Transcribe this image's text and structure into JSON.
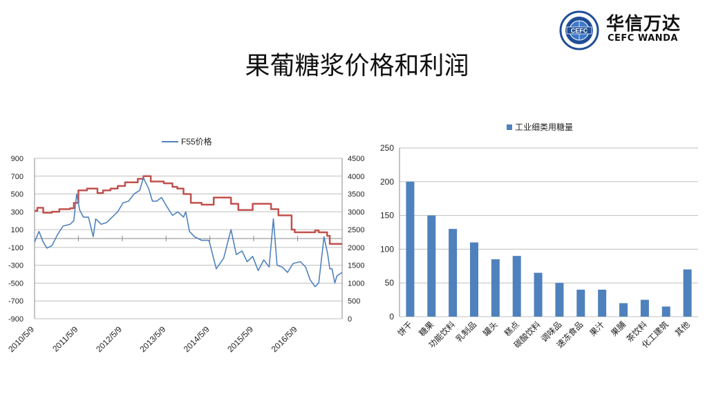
{
  "header": {
    "title": "果葡糖浆价格和利润",
    "logo_cn": "华信万达",
    "logo_en": "CEFC WANDA",
    "logo_ring_text": "CEFC WANDA FUTURES COMPANY LIMITED",
    "logo_center": "CEFC"
  },
  "chart_data": [
    {
      "type": "line",
      "legend_position": "top",
      "grid": true,
      "left_axis": {
        "ylim": [
          -900,
          900
        ],
        "ticks": [
          900,
          700,
          500,
          300,
          100,
          -100,
          -300,
          -500,
          -700,
          -900
        ]
      },
      "right_axis": {
        "ylim": [
          0,
          4500
        ],
        "ticks": [
          4500,
          4000,
          3500,
          3000,
          2500,
          2000,
          1500,
          1000,
          500,
          0
        ]
      },
      "x_ticks": [
        "2010/5/9",
        "2011/5/9",
        "2012/5/9",
        "2013/5/9",
        "2014/5/9",
        "2015/5/9",
        "2016/5/9"
      ],
      "x_range": [
        "2010-05-09",
        "2017-05-15"
      ],
      "series": [
        {
          "name": "",
          "axis": "left",
          "color": "#c0504d",
          "step": true,
          "points": [
            [
              "2010-05-09",
              310
            ],
            [
              "2010-06-01",
              345
            ],
            [
              "2010-07-20",
              290
            ],
            [
              "2010-10-01",
              300
            ],
            [
              "2010-12-01",
              330
            ],
            [
              "2011-03-01",
              340
            ],
            [
              "2011-04-01",
              400
            ],
            [
              "2011-05-09",
              540
            ],
            [
              "2011-07-20",
              560
            ],
            [
              "2011-10-15",
              510
            ],
            [
              "2011-12-01",
              540
            ],
            [
              "2012-02-01",
              560
            ],
            [
              "2012-04-01",
              590
            ],
            [
              "2012-06-01",
              630
            ],
            [
              "2012-09-15",
              670
            ],
            [
              "2012-11-01",
              700
            ],
            [
              "2013-01-01",
              640
            ],
            [
              "2013-04-20",
              620
            ],
            [
              "2013-07-01",
              580
            ],
            [
              "2013-08-10",
              560
            ],
            [
              "2013-10-01",
              500
            ],
            [
              "2013-12-01",
              400
            ],
            [
              "2014-03-01",
              380
            ],
            [
              "2014-06-10",
              460
            ],
            [
              "2014-11-01",
              390
            ],
            [
              "2015-01-01",
              320
            ],
            [
              "2015-05-01",
              390
            ],
            [
              "2015-10-01",
              330
            ],
            [
              "2015-12-01",
              260
            ],
            [
              "2016-03-20",
              100
            ],
            [
              "2016-04-15",
              70
            ],
            [
              "2016-10-01",
              90
            ],
            [
              "2016-11-01",
              70
            ],
            [
              "2017-01-10",
              30
            ],
            [
              "2017-02-01",
              -60
            ],
            [
              "2017-05-15",
              -60
            ]
          ]
        },
        {
          "name": "F55价格",
          "axis": "right",
          "color": "#4f81bd",
          "step": false,
          "points": [
            [
              "2010-05-09",
              2150
            ],
            [
              "2010-06-15",
              2450
            ],
            [
              "2010-07-20",
              2150
            ],
            [
              "2010-08-20",
              1980
            ],
            [
              "2010-10-01",
              2050
            ],
            [
              "2010-11-15",
              2350
            ],
            [
              "2011-01-01",
              2600
            ],
            [
              "2011-03-01",
              2650
            ],
            [
              "2011-04-01",
              2750
            ],
            [
              "2011-04-25",
              3500
            ],
            [
              "2011-05-20",
              3050
            ],
            [
              "2011-06-20",
              2850
            ],
            [
              "2011-08-01",
              2850
            ],
            [
              "2011-09-10",
              2300
            ],
            [
              "2011-10-01",
              2800
            ],
            [
              "2011-11-15",
              2650
            ],
            [
              "2012-01-01",
              2700
            ],
            [
              "2012-02-15",
              2850
            ],
            [
              "2012-04-01",
              3000
            ],
            [
              "2012-05-15",
              3250
            ],
            [
              "2012-07-01",
              3300
            ],
            [
              "2012-08-15",
              3500
            ],
            [
              "2012-10-01",
              3600
            ],
            [
              "2012-11-01",
              3950
            ],
            [
              "2012-12-15",
              3650
            ],
            [
              "2013-01-15",
              3300
            ],
            [
              "2013-02-20",
              3300
            ],
            [
              "2013-04-01",
              3400
            ],
            [
              "2013-05-15",
              3150
            ],
            [
              "2013-07-01",
              2900
            ],
            [
              "2013-08-15",
              3000
            ],
            [
              "2013-10-01",
              2850
            ],
            [
              "2013-10-20",
              3000
            ],
            [
              "2013-11-20",
              2450
            ],
            [
              "2014-01-01",
              2300
            ],
            [
              "2014-03-01",
              2200
            ],
            [
              "2014-05-01",
              2200
            ],
            [
              "2014-07-01",
              1400
            ],
            [
              "2014-09-01",
              1700
            ],
            [
              "2014-11-01",
              2500
            ],
            [
              "2014-12-15",
              1800
            ],
            [
              "2015-02-01",
              1900
            ],
            [
              "2015-03-15",
              1600
            ],
            [
              "2015-05-01",
              1750
            ],
            [
              "2015-06-15",
              1350
            ],
            [
              "2015-08-01",
              1650
            ],
            [
              "2015-09-15",
              1450
            ],
            [
              "2015-10-20",
              2800
            ],
            [
              "2015-11-20",
              1500
            ],
            [
              "2016-01-01",
              1450
            ],
            [
              "2016-02-15",
              1300
            ],
            [
              "2016-04-01",
              1550
            ],
            [
              "2016-06-01",
              1600
            ],
            [
              "2016-07-15",
              1450
            ],
            [
              "2016-08-20",
              1100
            ],
            [
              "2016-10-01",
              900
            ],
            [
              "2016-11-01",
              1000
            ],
            [
              "2016-12-15",
              2300
            ],
            [
              "2017-01-15",
              1800
            ],
            [
              "2017-02-01",
              1400
            ],
            [
              "2017-02-20",
              1400
            ],
            [
              "2017-03-15",
              1000
            ],
            [
              "2017-04-01",
              1200
            ],
            [
              "2017-05-15",
              1300
            ]
          ]
        }
      ]
    },
    {
      "type": "bar",
      "legend_position": "top",
      "color": "#4f81bd",
      "categories": [
        "饼干",
        "糖果",
        "功能饮料",
        "乳制品",
        "罐头",
        "糕点",
        "碳酸饮料",
        "调味品",
        "速冻食品",
        "果汁",
        "果脯",
        "茶饮料",
        "化工建筑",
        "其他"
      ],
      "series": [
        {
          "name": "工业细类用糖量",
          "values": [
            200,
            150,
            130,
            110,
            85,
            90,
            65,
            50,
            40,
            40,
            20,
            25,
            15,
            70
          ]
        }
      ],
      "ylim": [
        0,
        250
      ],
      "yticks": [
        250,
        200,
        150,
        100,
        50,
        0
      ],
      "grid": true
    }
  ]
}
